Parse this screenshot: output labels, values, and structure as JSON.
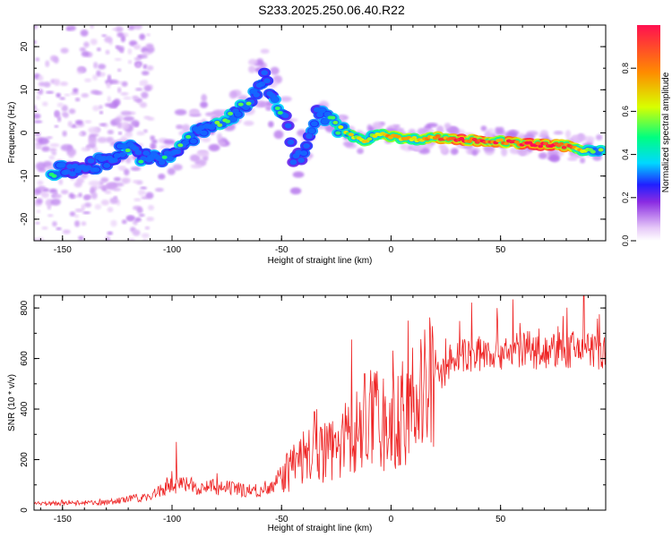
{
  "figure": {
    "title": "S233.2025.250.06.40.R22"
  },
  "chart_data": [
    {
      "type": "heatmap",
      "title": "S233.2025.250.06.40.R22",
      "xlabel": "Height of straight line (km)",
      "ylabel": "Frequency (Hz)",
      "xlim": [
        -163,
        98
      ],
      "ylim": [
        -25,
        25
      ],
      "xticks": [
        -150,
        -100,
        -50,
        0,
        50
      ],
      "yticks": [
        -20,
        -10,
        0,
        10,
        20
      ],
      "colorbar": {
        "label": "Normalized spectral amplitude",
        "range": [
          0,
          1
        ],
        "ticks": [
          0.0,
          0.2,
          0.4,
          0.6,
          0.8
        ],
        "colors": [
          "#ffffff",
          "#e6c8f8",
          "#8a2be2",
          "#2020ff",
          "#00d8ff",
          "#00ff80",
          "#d8ff00",
          "#ff8c00",
          "#ff1050"
        ]
      },
      "ridge": [
        {
          "x": -153,
          "f": -9.0,
          "a": 0.3
        },
        {
          "x": -145,
          "f": -8.5,
          "a": 0.25
        },
        {
          "x": -138,
          "f": -7.5,
          "a": 0.25
        },
        {
          "x": -130,
          "f": -6.5,
          "a": 0.3
        },
        {
          "x": -120,
          "f": -3.0,
          "a": 0.35
        },
        {
          "x": -112,
          "f": -6.0,
          "a": 0.3
        },
        {
          "x": -104,
          "f": -6.5,
          "a": 0.3
        },
        {
          "x": -96,
          "f": -3.0,
          "a": 0.35
        },
        {
          "x": -88,
          "f": 0.0,
          "a": 0.3
        },
        {
          "x": -80,
          "f": 2.0,
          "a": 0.35
        },
        {
          "x": -72,
          "f": 4.0,
          "a": 0.35
        },
        {
          "x": -66,
          "f": 6.0,
          "a": 0.35
        },
        {
          "x": -58,
          "f": 13.0,
          "a": 0.35
        },
        {
          "x": -48,
          "f": 3.0,
          "a": 0.3
        },
        {
          "x": -44,
          "f": -7.0,
          "a": 0.25
        },
        {
          "x": -38,
          "f": -3.0,
          "a": 0.3
        },
        {
          "x": -34,
          "f": 5.0,
          "a": 0.25
        },
        {
          "x": -26,
          "f": 2.0,
          "a": 0.4
        },
        {
          "x": -20,
          "f": 0.0,
          "a": 0.45
        },
        {
          "x": -13,
          "f": -2.0,
          "a": 0.55
        },
        {
          "x": -5,
          "f": 0.0,
          "a": 0.5
        },
        {
          "x": 2,
          "f": -1.0,
          "a": 0.6
        },
        {
          "x": 10,
          "f": -1.5,
          "a": 0.55
        },
        {
          "x": 20,
          "f": -1.0,
          "a": 0.6
        },
        {
          "x": 30,
          "f": -1.5,
          "a": 0.8
        },
        {
          "x": 40,
          "f": -1.8,
          "a": 0.85
        },
        {
          "x": 50,
          "f": -2.0,
          "a": 0.75
        },
        {
          "x": 60,
          "f": -2.5,
          "a": 0.8
        },
        {
          "x": 70,
          "f": -2.8,
          "a": 0.9
        },
        {
          "x": 80,
          "f": -3.0,
          "a": 0.7
        },
        {
          "x": 88,
          "f": -4.0,
          "a": 0.45
        },
        {
          "x": 95,
          "f": -4.0,
          "a": 0.4
        }
      ]
    },
    {
      "type": "line",
      "xlabel": "Height of straight line (km)",
      "ylabel": "SNR (10 * v/v)",
      "xlim": [
        -163,
        98
      ],
      "ylim": [
        0,
        850
      ],
      "xticks": [
        -150,
        -100,
        -50,
        0,
        50
      ],
      "yticks": [
        0,
        200,
        400,
        600,
        800
      ],
      "color": "#ee2222",
      "envelope": {
        "x": [
          -163,
          -130,
          -110,
          -100,
          -80,
          -60,
          -50,
          -40,
          -30,
          -20,
          -10,
          0,
          10,
          20,
          30,
          40,
          50,
          60,
          70,
          80,
          90,
          98
        ],
        "y": [
          25,
          30,
          55,
          100,
          90,
          75,
          130,
          210,
          240,
          280,
          360,
          330,
          430,
          520,
          600,
          625,
          630,
          635,
          630,
          630,
          640,
          620
        ]
      },
      "spikes": [
        {
          "x": -98,
          "y": 270
        },
        {
          "x": -35,
          "y": 390
        },
        {
          "x": -18,
          "y": 675
        },
        {
          "x": -12,
          "y": 540
        },
        {
          "x": 88,
          "y": 850
        }
      ]
    }
  ]
}
